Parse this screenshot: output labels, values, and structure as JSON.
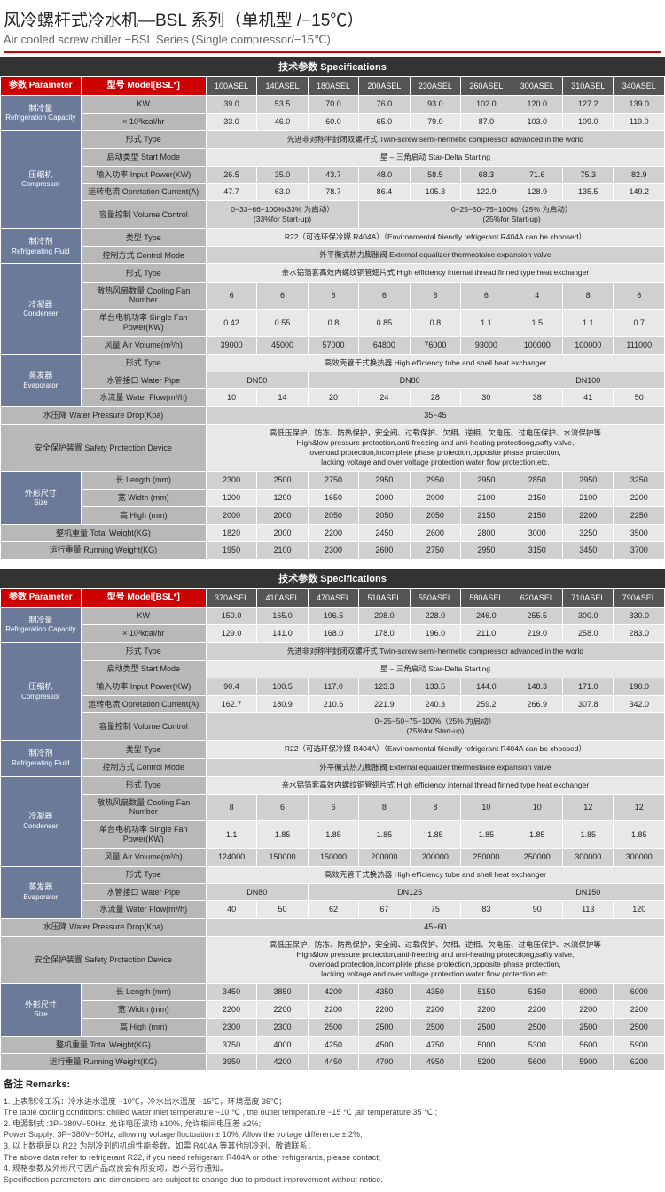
{
  "title_cn": "风冷螺杆式冷水机—BSL 系列（单机型 /−15℃）",
  "title_en": "Air cooled screw chiller −BSL Series (Single compressor/−15℃)",
  "spec_header": "技术参数 Specifications",
  "param_hdr": "参数 Parameter",
  "model_hdr": "型号 Model[BSL*]",
  "colors": {
    "red": "#c00",
    "hdr_grey": "#555",
    "lbl_blue": "#6b7a99",
    "lbl_grey": "#b8b8b8",
    "row_dark": "#d0d0d0",
    "row_light": "#e8e8e8"
  },
  "groups": {
    "refrig_cap": {
      "cn": "制冷量",
      "en": "Refrigeration Capacity"
    },
    "compressor": {
      "cn": "压缩机",
      "en": "Compressor"
    },
    "refrig_fluid": {
      "cn": "制冷剂",
      "en": "Refrigerating Fluid"
    },
    "condenser": {
      "cn": "冷凝器",
      "en": "Condenser"
    },
    "evaporator": {
      "cn": "蒸发器",
      "en": "Evaporator"
    },
    "safety": "安全保护装置 Safety Protection Device",
    "size": {
      "cn": "外形尺寸",
      "en": "Size"
    },
    "total_weight": "整机重量 Total Weight(KG)",
    "running_weight": "运行重量 Running Weight(KG)",
    "pressure_drop": "水压降 Water Pressure Drop(Kpa)"
  },
  "labels": {
    "kw": "KW",
    "kcal": "× 10³kcal/hr",
    "type": "形式 Type",
    "start_mode": "启动类型 Start Mode",
    "input_power": "输入功率 Input Power(KW)",
    "op_current": "运转电流 Opretation Current(A)",
    "vol_control": "容量控制 Volume Control",
    "fluid_type": "类型 Type",
    "control_mode": "控制方式 Control Mode",
    "fan_number": "散热风扇数量 Cooling Fan Number",
    "fan_power": "单台电机功率 Single Fan Power(KW)",
    "air_volume": "风量 Air Volume(m³/h)",
    "water_pipe": "水管接口 Water Pipe",
    "water_flow": "水流量 Water Flow(m³/h)",
    "length": "长 Length (mm)",
    "width": "宽 Width (mm)",
    "high": "高 High (mm)"
  },
  "text_rows": {
    "compressor_type": "先进非对称半封闭双螺杆式 Twin-screw semi-hermetic compressor advanced in the world",
    "start_mode": "星 – 三角启动 Star-Delta Starting",
    "vol_control_a": "0−33−66−100%(33% 为启动）\n(33%for Start-up)",
    "vol_control_b": "0−25−50−75−100%（25% 为启动）\n(25%for Start-up)",
    "vol_control_full": "0−25−50−75−100%（25% 为启动）\n(25%for Start-up)",
    "fluid_type": "R22（可选环保冷媒 R404A）（Environmental friendly refrigerant R404A can be choosed）",
    "control_mode": "外平衡式热力膨胀阀 External equalizer thermostaice expansion valve",
    "condenser_type": "亲水铝箔套高效内螺纹铜管翅片式 High efficiency internal thread finned type heat exchanger",
    "evaporator_type": "高效壳管干式换热器 High efficiency tube and shell heat exchanger",
    "safety": "高低压保护，防冻、防热保护，安全阀、过载保护、欠相、逆相、欠电压、过电压保护、水流保护等\nHigh&low pressure protection,anti-freezing and anti-heating protectiong,safty valve,\noverload protection,incomplete phase protection,opposite phase protection,\nlacking voltage and over voltage protection,water flow protection,etc.",
    "pressure_drop_1": "35−45",
    "pressure_drop_2": "45−60"
  },
  "t1": {
    "models": [
      "100ASEL",
      "140ASEL",
      "180ASEL",
      "200ASEL",
      "230ASEL",
      "260ASEL",
      "300ASEL",
      "310ASEL",
      "340ASEL"
    ],
    "kw": [
      "39.0",
      "53.5",
      "70.0",
      "76.0",
      "93.0",
      "102.0",
      "120.0",
      "127.2",
      "139.0"
    ],
    "kcal": [
      "33.0",
      "46.0",
      "60.0",
      "65.0",
      "79.0",
      "87.0",
      "103.0",
      "109.0",
      "119.0"
    ],
    "input_power": [
      "26.5",
      "35.0",
      "43.7",
      "48.0",
      "58.5",
      "68.3",
      "71.6",
      "75.3",
      "82.9"
    ],
    "op_current": [
      "47.7",
      "63.0",
      "78.7",
      "86.4",
      "105.3",
      "122.9",
      "128.9",
      "135.5",
      "149.2"
    ],
    "fan_number": [
      "6",
      "6",
      "6",
      "6",
      "8",
      "6",
      "4",
      "8",
      "6"
    ],
    "fan_power": [
      "0.42",
      "0.55",
      "0.8",
      "0.85",
      "0.8",
      "1.1",
      "1.5",
      "1.1",
      "0.7"
    ],
    "air_volume": [
      "39000",
      "45000",
      "57000",
      "64800",
      "76000",
      "93000",
      "100000",
      "100000",
      "111000"
    ],
    "water_pipe_spans": [
      {
        "label": "DN50",
        "span": 2
      },
      {
        "label": "DN80",
        "span": 4
      },
      {
        "label": "DN100",
        "span": 3
      }
    ],
    "water_flow": [
      "10",
      "14",
      "20",
      "24",
      "28",
      "30",
      "38",
      "41",
      "50"
    ],
    "length": [
      "2300",
      "2500",
      "2750",
      "2950",
      "2950",
      "2950",
      "2850",
      "2950",
      "3250"
    ],
    "width": [
      "1200",
      "1200",
      "1650",
      "2000",
      "2000",
      "2100",
      "2150",
      "2100",
      "2200"
    ],
    "high": [
      "2000",
      "2000",
      "2050",
      "2050",
      "2050",
      "2150",
      "2150",
      "2200",
      "2250"
    ],
    "total_weight": [
      "1820",
      "2000",
      "2200",
      "2450",
      "2600",
      "2800",
      "3000",
      "3250",
      "3500"
    ],
    "running_weight": [
      "1950",
      "2100",
      "2300",
      "2600",
      "2750",
      "2950",
      "3150",
      "3450",
      "3700"
    ],
    "vol_control_split": [
      3,
      6
    ]
  },
  "t2": {
    "models": [
      "370ASEL",
      "410ASEL",
      "470ASEL",
      "510ASEL",
      "550ASEL",
      "580ASEL",
      "620ASEL",
      "710ASEL",
      "790ASEL"
    ],
    "kw": [
      "150.0",
      "165.0",
      "196.5",
      "208.0",
      "228.0",
      "246.0",
      "255.5",
      "300.0",
      "330.0"
    ],
    "kcal": [
      "129.0",
      "141.0",
      "168.0",
      "178.0",
      "196.0",
      "211.0",
      "219.0",
      "258.0",
      "283.0"
    ],
    "input_power": [
      "90.4",
      "100.5",
      "117.0",
      "123.3",
      "133.5",
      "144.0",
      "148.3",
      "171.0",
      "190.0"
    ],
    "op_current": [
      "162.7",
      "180.9",
      "210.6",
      "221.9",
      "240.3",
      "259.2",
      "266.9",
      "307.8",
      "342.0"
    ],
    "fan_number": [
      "8",
      "6",
      "6",
      "8",
      "8",
      "10",
      "10",
      "12",
      "12"
    ],
    "fan_power": [
      "1.1",
      "1.85",
      "1.85",
      "1.85",
      "1.85",
      "1.85",
      "1.85",
      "1.85",
      "1.85"
    ],
    "air_volume": [
      "124000",
      "150000",
      "150000",
      "200000",
      "200000",
      "250000",
      "250000",
      "300000",
      "300000"
    ],
    "water_pipe_spans": [
      {
        "label": "DN80",
        "span": 2
      },
      {
        "label": "DN125",
        "span": 4
      },
      {
        "label": "DN150",
        "span": 3
      }
    ],
    "water_flow": [
      "40",
      "50",
      "62",
      "67",
      "75",
      "83",
      "90",
      "113",
      "120"
    ],
    "length": [
      "3450",
      "3850",
      "4200",
      "4350",
      "4350",
      "5150",
      "5150",
      "6000",
      "6000"
    ],
    "width": [
      "2200",
      "2200",
      "2200",
      "2200",
      "2200",
      "2200",
      "2200",
      "2200",
      "2200"
    ],
    "high": [
      "2300",
      "2300",
      "2500",
      "2500",
      "2500",
      "2500",
      "2500",
      "2500",
      "2500"
    ],
    "total_weight": [
      "3750",
      "4000",
      "4250",
      "4500",
      "4750",
      "5000",
      "5300",
      "5600",
      "5900"
    ],
    "running_weight": [
      "3950",
      "4200",
      "4450",
      "4700",
      "4950",
      "5200",
      "5600",
      "5900",
      "6200"
    ]
  },
  "remarks": {
    "title": "备注 Remarks:",
    "lines": [
      "1. 上表制冷工况：冷水进水温度 −10℃，冷水出水温度 −15℃，环境温度 35℃；",
      "The table cooling conditions: chilled water inlet temperature −10 ℃ , the outlet temperature −15 ℃ ,air temperature 35 ℃ ;",
      "2. 电源制式 :3P−380V−50Hz, 允许电压波动 ±10%, 允许相间电压差 ±2%;",
      "Power Supply: 3P−380V−50Hz, allowing voltage fluctuation ± 10%, Allow the voltage difference ± 2%;",
      "3. 以上数据是以 R22 为制冷剂的机组性能参数，如需 R404A 等其他制冷剂、敬请联系；",
      "The above data refer to refrigerant R22, if you need refrigerant R404A or other refrigerants, please contact;",
      "4. 规格参数及外形尺寸因产品改良会有所变动，恕不另行通知。",
      "Specification parameters and dimensions are subject to change due to product improvement without notice."
    ]
  }
}
